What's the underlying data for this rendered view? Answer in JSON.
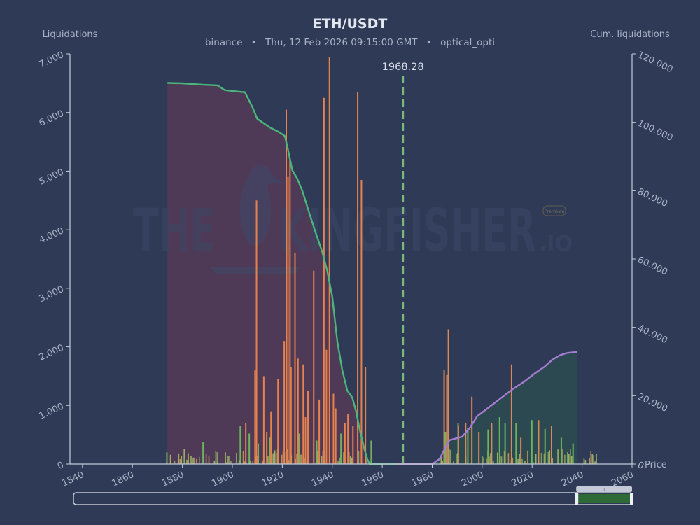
{
  "chart_data": {
    "type": "bar",
    "title": "ETH/USDT",
    "subtitle": {
      "exchange": "binance",
      "sep1": "•",
      "datetime": "Thu, 12 Feb 2026 09:15:00 GMT",
      "sep2": "•",
      "account": "optical_opti"
    },
    "y_left_label": "Liquidations",
    "y_right_label": "Cum. liquidations",
    "x_label": "Price",
    "xlim": [
      1835,
      2060
    ],
    "ylim_left": [
      0,
      7000
    ],
    "ylim_right": [
      0,
      120000
    ],
    "x_ticks": [
      "1840",
      "1860",
      "1880",
      "1900",
      "1920",
      "1940",
      "1960",
      "1980",
      "2000",
      "2020",
      "2040",
      "2060"
    ],
    "x_tick_values": [
      1840,
      1860,
      1880,
      1900,
      1920,
      1940,
      1960,
      1980,
      2000,
      2020,
      2040,
      2060
    ],
    "y_left_ticks": [
      "0",
      "1.000",
      "2.000",
      "3.000",
      "4.000",
      "5.000",
      "6.000",
      "7.000"
    ],
    "y_left_tick_values": [
      0,
      1000,
      2000,
      3000,
      4000,
      5000,
      6000,
      7000
    ],
    "y_right_ticks": [
      "0",
      "20.000",
      "40.000",
      "60.000",
      "80.000",
      "100.000",
      "120.000"
    ],
    "y_right_tick_values": [
      0,
      20000,
      40000,
      60000,
      80000,
      100000,
      120000
    ],
    "current_price": 1968.28,
    "current_price_label": "1968.28",
    "short_bars": [
      [
        1908.8,
        1600
      ],
      [
        1912.3,
        1500
      ],
      [
        1918.0,
        1450
      ],
      [
        1920.5,
        2100
      ],
      [
        1922.0,
        4900
      ],
      [
        1923.2,
        1650
      ],
      [
        1924.8,
        3600
      ],
      [
        1926.0,
        1800
      ],
      [
        1928.1,
        1700
      ],
      [
        1930.0,
        1250
      ],
      [
        1932.3,
        3300
      ],
      [
        1936.4,
        6250
      ],
      [
        1937.4,
        1950
      ],
      [
        1938.6,
        6950
      ],
      [
        1940.2,
        1200
      ],
      [
        1941.1,
        950
      ],
      [
        1944.8,
        700
      ],
      [
        1946.0,
        850
      ],
      [
        1948.0,
        650
      ],
      [
        1949.9,
        6350
      ],
      [
        1951.4,
        4850
      ],
      [
        1953.0,
        1650
      ],
      [
        1909.4,
        4500
      ],
      [
        1922.8,
        5200
      ],
      [
        1921.3,
        6050
      ],
      [
        1913.5,
        550
      ],
      [
        1905.1,
        700
      ],
      [
        1915.2,
        900
      ],
      [
        1934.5,
        1100
      ],
      [
        1929.0,
        800
      ]
    ],
    "long_bars": [
      [
        1984.5,
        1600
      ],
      [
        1985.6,
        1520
      ],
      [
        1986.2,
        2300
      ],
      [
        1995.6,
        1150
      ],
      [
        2011.5,
        1700
      ],
      [
        1990.2,
        650
      ],
      [
        1993.1,
        700
      ],
      [
        1998.4,
        550
      ],
      [
        2003.5,
        700
      ],
      [
        2015.2,
        450
      ],
      [
        2022.3,
        750
      ],
      [
        2027.5,
        650
      ]
    ],
    "green_bars": [
      [
        1873.5,
        200
      ],
      [
        1880.6,
        100
      ],
      [
        1888.0,
        370
      ],
      [
        1902.9,
        650
      ],
      [
        1906.5,
        520
      ],
      [
        1910.1,
        350
      ],
      [
        1914.7,
        450
      ],
      [
        1926.5,
        520
      ],
      [
        1933.5,
        400
      ],
      [
        1943.2,
        520
      ],
      [
        1955.3,
        400
      ],
      [
        1985.0,
        550
      ],
      [
        1990.1,
        700
      ],
      [
        1994.0,
        620
      ],
      [
        2002.1,
        590
      ],
      [
        2006.7,
        800
      ],
      [
        2008.9,
        700
      ],
      [
        2013.3,
        700
      ],
      [
        2019.6,
        750
      ],
      [
        2024.9,
        600
      ],
      [
        2031.4,
        450
      ],
      [
        2036.1,
        350
      ]
    ],
    "cum_short_curve": [
      [
        1874,
        111500
      ],
      [
        1880,
        111400
      ],
      [
        1888,
        111000
      ],
      [
        1894,
        110800
      ],
      [
        1897,
        109400
      ],
      [
        1902,
        109000
      ],
      [
        1905,
        108800
      ],
      [
        1908,
        104500
      ],
      [
        1910,
        101000
      ],
      [
        1912,
        100000
      ],
      [
        1915,
        98500
      ],
      [
        1919,
        97000
      ],
      [
        1921,
        96000
      ],
      [
        1922,
        93000
      ],
      [
        1924,
        86000
      ],
      [
        1926,
        83500
      ],
      [
        1928,
        80000
      ],
      [
        1931,
        73000
      ],
      [
        1933,
        68500
      ],
      [
        1936,
        62000
      ],
      [
        1938,
        56500
      ],
      [
        1940,
        49000
      ],
      [
        1942,
        36000
      ],
      [
        1944,
        27500
      ],
      [
        1946,
        21500
      ],
      [
        1948,
        19500
      ],
      [
        1949.5,
        15500
      ],
      [
        1951,
        10000
      ],
      [
        1953,
        4000
      ],
      [
        1954,
        1500
      ],
      [
        1955,
        0
      ],
      [
        1966,
        0
      ]
    ],
    "cum_long_curve": [
      [
        1966,
        0
      ],
      [
        1980,
        0
      ],
      [
        1983,
        1500
      ],
      [
        1985,
        4500
      ],
      [
        1987,
        7000
      ],
      [
        1992,
        8000
      ],
      [
        1995,
        10500
      ],
      [
        1998,
        14000
      ],
      [
        2002,
        16200
      ],
      [
        2007,
        19000
      ],
      [
        2012,
        21800
      ],
      [
        2017,
        24200
      ],
      [
        2021,
        26500
      ],
      [
        2025,
        28500
      ],
      [
        2028,
        30500
      ],
      [
        2031,
        31800
      ],
      [
        2034,
        32500
      ],
      [
        2038,
        32800
      ]
    ],
    "short_fill_color": "#533b57",
    "long_fill_color": "#2c4a51",
    "short_bar_color": "#e8824d",
    "long_bar_color": "#d98a5c",
    "small_bar_color": "#b7c76a",
    "green_bar_color": "#6fb35f",
    "cum_short_color": "#4bb57c",
    "cum_long_color": "#a57ccf",
    "price_line_color": "#7bb879"
  },
  "watermark": {
    "left": "THE",
    "right": "KINGFISHER",
    "suffix": ".IO",
    "badge": "Premium"
  },
  "range_slider": {
    "handle_label": "III",
    "start": 0.9,
    "end": 1.0,
    "fill_color": "#2d6a37",
    "handle_color": "#c3c9d6"
  }
}
